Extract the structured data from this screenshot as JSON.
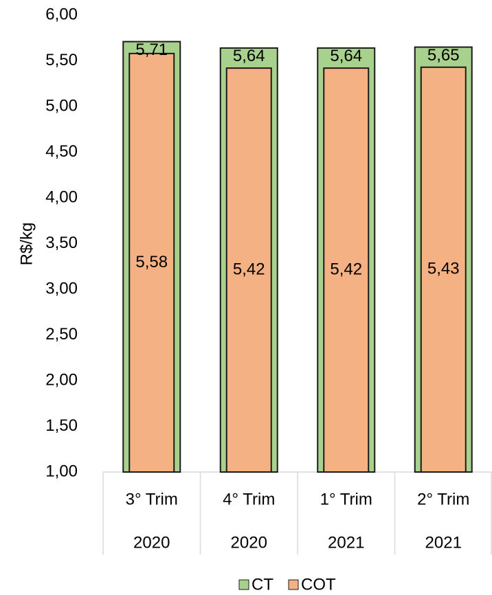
{
  "chart_data": {
    "type": "bar",
    "mode": "overlap",
    "y_label": "R$/kg",
    "categories": [
      [
        "3° Trim",
        "2020"
      ],
      [
        "4° Trim",
        "2020"
      ],
      [
        "1° Trim",
        "2021"
      ],
      [
        "2° Trim",
        "2021"
      ]
    ],
    "series": [
      {
        "name": "CT",
        "color": "#a9d18e",
        "values": [
          5.71,
          5.64,
          5.64,
          5.65
        ],
        "value_labels": [
          "5,71",
          "5,64",
          "5,64",
          "5,65"
        ]
      },
      {
        "name": "COT",
        "color": "#f4b183",
        "values": [
          5.58,
          5.42,
          5.42,
          5.43
        ],
        "value_labels": [
          "5,58",
          "5,42",
          "5,42",
          "5,43"
        ]
      }
    ],
    "ylim": [
      1,
      6
    ],
    "yticks": [
      {
        "value": 1,
        "label": "1,00"
      },
      {
        "value": 1.5,
        "label": "1,50"
      },
      {
        "value": 2,
        "label": "2,00"
      },
      {
        "value": 2.5,
        "label": "2,50"
      },
      {
        "value": 3,
        "label": "3,00"
      },
      {
        "value": 3.5,
        "label": "3,50"
      },
      {
        "value": 4,
        "label": "4,00"
      },
      {
        "value": 4.5,
        "label": "4,50"
      },
      {
        "value": 5,
        "label": "5,00"
      },
      {
        "value": 5.5,
        "label": "5,50"
      },
      {
        "value": 6,
        "label": "6,00"
      }
    ],
    "grid": false,
    "legend": "bottom"
  }
}
